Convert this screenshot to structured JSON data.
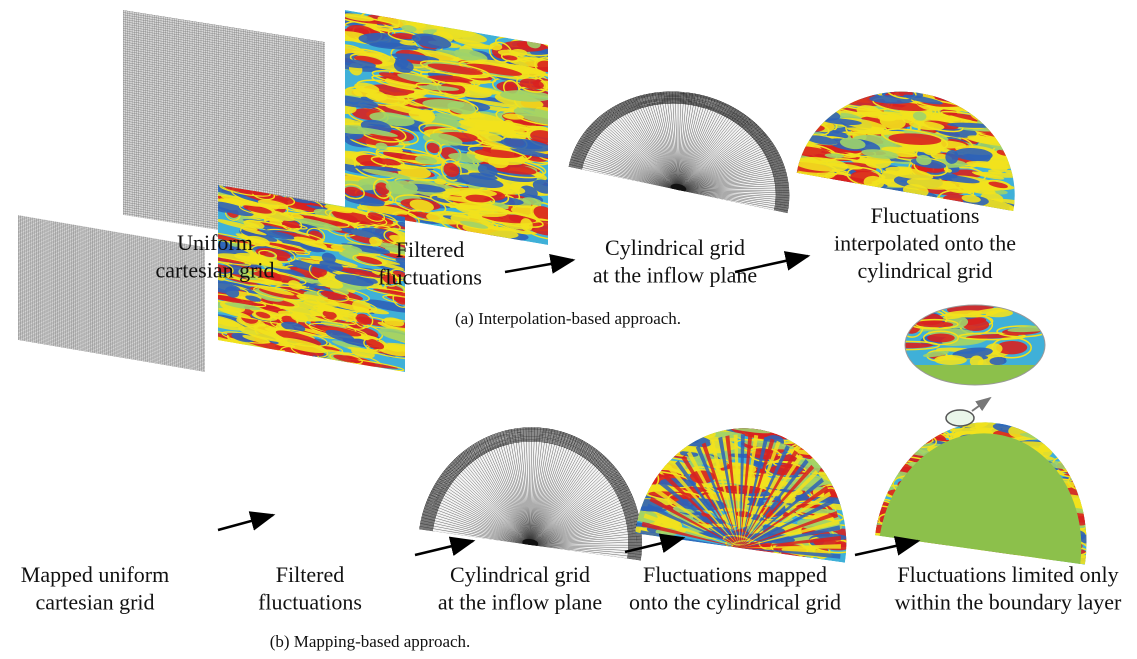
{
  "panels": [
    {
      "caption": "(a) Interpolation-based approach.",
      "steps": [
        {
          "label": [
            "Uniform",
            "cartesian grid"
          ]
        },
        {
          "label": [
            "Filtered",
            "fluctuations"
          ]
        },
        {
          "label": [
            "Cylindrical grid",
            "at the inflow plane"
          ]
        },
        {
          "label": [
            "Fluctuations",
            "interpolated onto the",
            "cylindrical grid"
          ]
        }
      ]
    },
    {
      "caption": "(b) Mapping-based approach.",
      "steps": [
        {
          "label": [
            "Mapped uniform",
            "cartesian grid"
          ]
        },
        {
          "label": [
            "Filtered",
            "fluctuations"
          ]
        },
        {
          "label": [
            "Cylindrical grid",
            "at the inflow plane"
          ]
        },
        {
          "label": [
            "Fluctuations mapped",
            "onto the cylindrical grid"
          ]
        },
        {
          "label": [
            "Fluctuations limited only",
            "within the boundary layer"
          ]
        }
      ]
    }
  ]
}
